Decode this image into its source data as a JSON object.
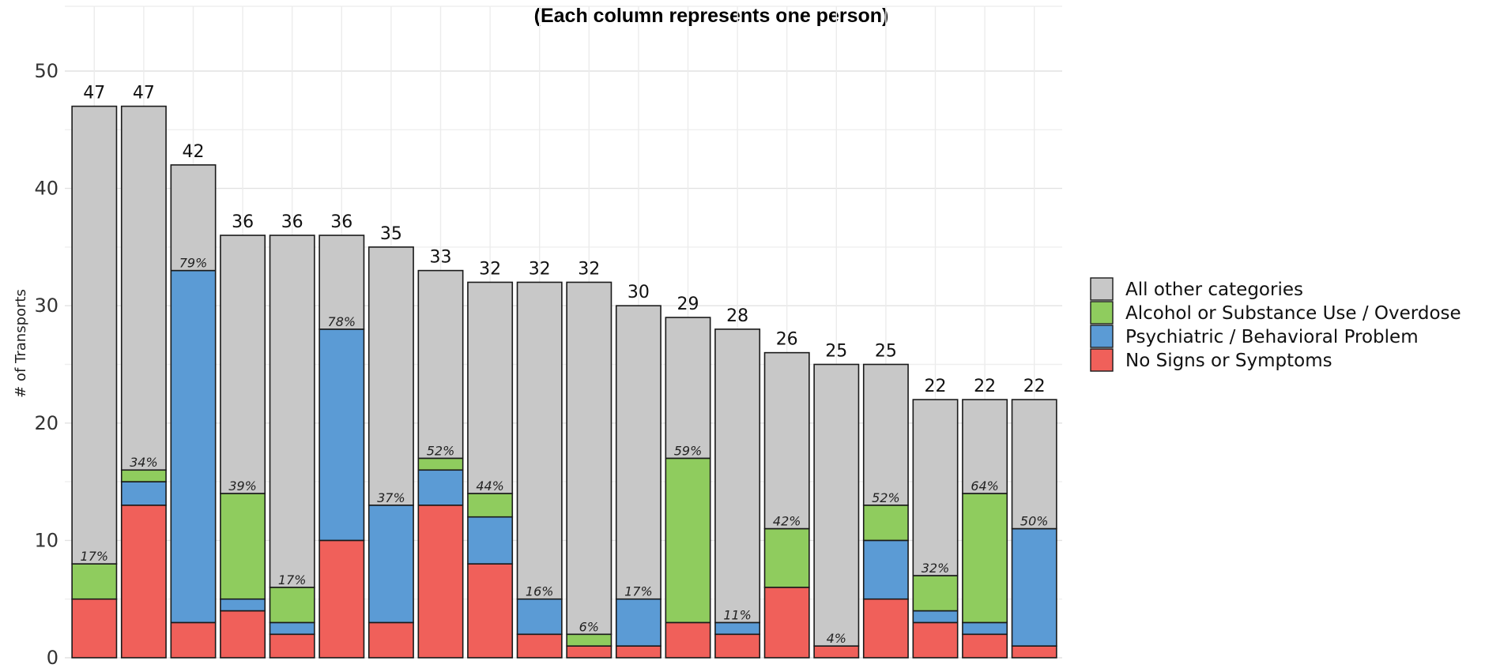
{
  "chart_data": {
    "type": "bar",
    "stacked": true,
    "subtitle": "(Each column represents one person)",
    "ylabel": "# of Transports",
    "ylim": [
      0,
      50
    ],
    "yticks": [
      "0",
      "10",
      "20",
      "30",
      "40",
      "50"
    ],
    "grid": true,
    "legend_position": "right",
    "series": [
      {
        "name": "No Signs or Symptoms",
        "color": "#f0605a",
        "values": [
          5,
          13,
          3,
          4,
          2,
          10,
          3,
          13,
          8,
          2,
          1,
          1,
          3,
          2,
          6,
          1,
          5,
          3,
          2,
          1
        ]
      },
      {
        "name": "Psychiatric / Behavioral Problem",
        "color": "#5b9bd5",
        "values": [
          0,
          2,
          30,
          1,
          1,
          18,
          10,
          3,
          4,
          3,
          0,
          4,
          0,
          1,
          0,
          0,
          5,
          1,
          1,
          10
        ]
      },
      {
        "name": "Alcohol or Substance Use / Overdose",
        "color": "#8fcc5e",
        "values": [
          3,
          1,
          0,
          9,
          3,
          0,
          0,
          1,
          2,
          0,
          1,
          0,
          14,
          0,
          5,
          0,
          3,
          3,
          11,
          0
        ]
      },
      {
        "name": "All other categories",
        "color": "#c8c8c8",
        "values": [
          39,
          31,
          9,
          22,
          30,
          8,
          22,
          16,
          18,
          27,
          30,
          25,
          12,
          25,
          15,
          24,
          12,
          15,
          8,
          11
        ]
      }
    ],
    "totals": [
      "47",
      "47",
      "42",
      "36",
      "36",
      "36",
      "35",
      "33",
      "32",
      "32",
      "32",
      "30",
      "29",
      "28",
      "26",
      "25",
      "25",
      "22",
      "22",
      "22"
    ],
    "percent_labels": [
      "17%",
      "34%",
      "79%",
      "39%",
      "17%",
      "78%",
      "37%",
      "52%",
      "44%",
      "16%",
      "6%",
      "17%",
      "59%",
      "11%",
      "42%",
      "4%",
      "52%",
      "32%",
      "64%",
      "50%"
    ],
    "legend_order": [
      "All other categories",
      "Alcohol or Substance Use / Overdose",
      "Psychiatric / Behavioral Problem",
      "No Signs or Symptoms"
    ]
  }
}
